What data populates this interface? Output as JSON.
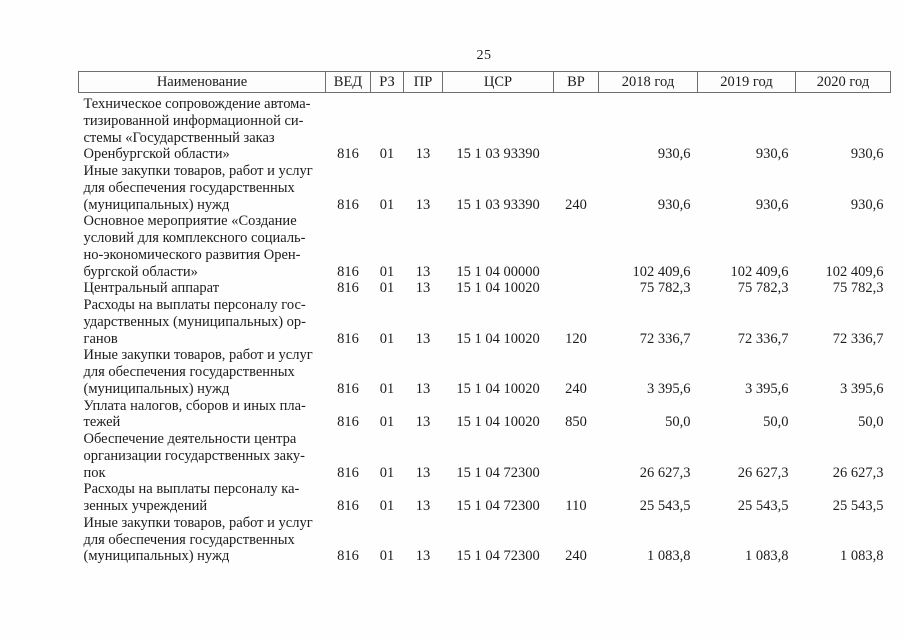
{
  "page": {
    "number": "25"
  },
  "table": {
    "columns": [
      {
        "key": "name",
        "label": "Наименование"
      },
      {
        "key": "ved",
        "label": "ВЕД"
      },
      {
        "key": "rz",
        "label": "РЗ"
      },
      {
        "key": "pr",
        "label": "ПР"
      },
      {
        "key": "csr",
        "label": "ЦСР"
      },
      {
        "key": "vr",
        "label": "ВР"
      },
      {
        "key": "y2018",
        "label": "2018 год"
      },
      {
        "key": "y2019",
        "label": "2019 год"
      },
      {
        "key": "y2020",
        "label": "2020 год"
      }
    ],
    "rows": [
      {
        "name": "Техническое сопровождение автома-\nтизированной информационной си-\nстемы «Государственный заказ\nОренбургской области»",
        "ved": "816",
        "rz": "01",
        "pr": "13",
        "csr": "15 1 03 93390",
        "vr": "",
        "y2018": "930,6",
        "y2019": "930,6",
        "y2020": "930,6"
      },
      {
        "name": "Иные закупки товаров, работ и услуг\nдля обеспечения государственных\n(муниципальных) нужд",
        "ved": "816",
        "rz": "01",
        "pr": "13",
        "csr": "15 1 03 93390",
        "vr": "240",
        "y2018": "930,6",
        "y2019": "930,6",
        "y2020": "930,6"
      },
      {
        "name": "Основное мероприятие «Создание\nусловий для комплексного социаль-\nно-экономического развития Орен-\nбургской области»",
        "ved": "816",
        "rz": "01",
        "pr": "13",
        "csr": "15 1 04 00000",
        "vr": "",
        "y2018": "102 409,6",
        "y2019": "102 409,6",
        "y2020": "102 409,6"
      },
      {
        "name": "Центральный аппарат",
        "ved": "816",
        "rz": "01",
        "pr": "13",
        "csr": "15 1 04 10020",
        "vr": "",
        "y2018": "75 782,3",
        "y2019": "75 782,3",
        "y2020": "75 782,3"
      },
      {
        "name": "Расходы на выплаты персоналу гос-\nударственных (муниципальных) ор-\nганов",
        "ved": "816",
        "rz": "01",
        "pr": "13",
        "csr": "15 1 04 10020",
        "vr": "120",
        "y2018": "72 336,7",
        "y2019": "72 336,7",
        "y2020": "72 336,7"
      },
      {
        "name": "Иные закупки товаров, работ и услуг\nдля обеспечения государственных\n(муниципальных) нужд",
        "ved": "816",
        "rz": "01",
        "pr": "13",
        "csr": "15 1 04 10020",
        "vr": "240",
        "y2018": "3 395,6",
        "y2019": "3 395,6",
        "y2020": "3 395,6"
      },
      {
        "name": "Уплата налогов, сборов и иных пла-\nтежей",
        "ved": "816",
        "rz": "01",
        "pr": "13",
        "csr": "15 1 04 10020",
        "vr": "850",
        "y2018": "50,0",
        "y2019": "50,0",
        "y2020": "50,0"
      },
      {
        "name": "Обеспечение деятельности центра\nорганизации государственных заку-\nпок",
        "ved": "816",
        "rz": "01",
        "pr": "13",
        "csr": "15 1 04 72300",
        "vr": "",
        "y2018": "26 627,3",
        "y2019": "26 627,3",
        "y2020": "26 627,3"
      },
      {
        "name": "Расходы на выплаты персоналу ка-\nзенных учреждений",
        "ved": "816",
        "rz": "01",
        "pr": "13",
        "csr": "15 1 04 72300",
        "vr": "110",
        "y2018": "25 543,5",
        "y2019": "25 543,5",
        "y2020": "25 543,5"
      },
      {
        "name": "Иные закупки товаров, работ и услуг\nдля обеспечения государственных\n(муниципальных) нужд",
        "ved": "816",
        "rz": "01",
        "pr": "13",
        "csr": "15 1 04 72300",
        "vr": "240",
        "y2018": "1 083,8",
        "y2019": "1 083,8",
        "y2020": "1 083,8"
      }
    ]
  }
}
